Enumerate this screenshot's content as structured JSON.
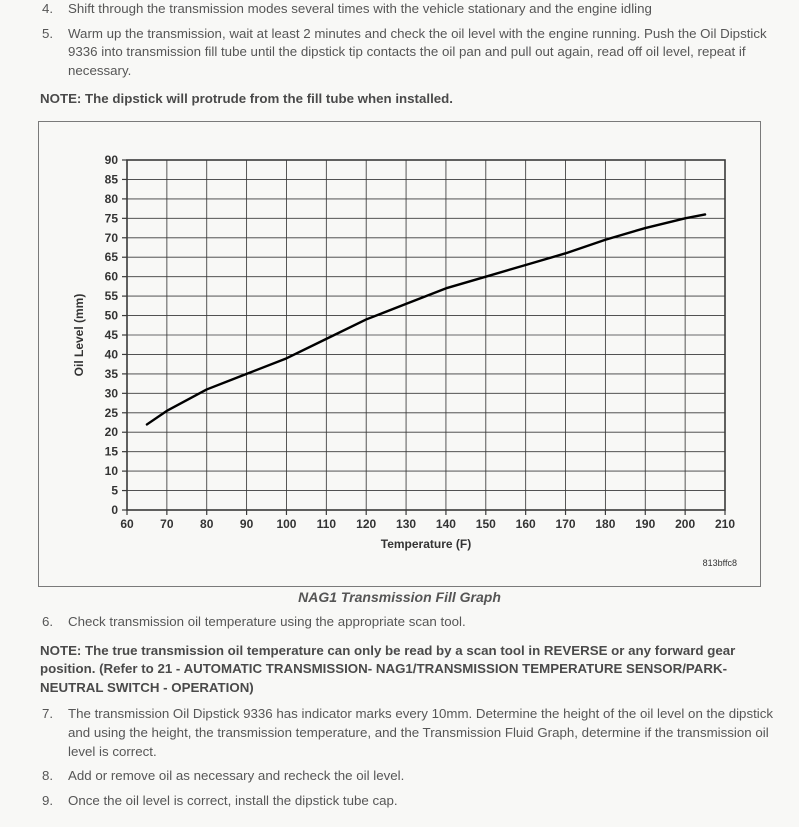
{
  "steps_top": [
    {
      "n": "4.",
      "text": "Shift through the transmission modes several times with the vehicle stationary and the engine idling"
    },
    {
      "n": "5.",
      "text": "Warm up the transmission, wait at least 2 minutes and check the oil level with the engine running. Push the Oil Dipstick 9336 into transmission fill tube until the dipstick tip contacts the oil pan and pull out again, read off oil level, repeat if necessary."
    }
  ],
  "note_1": "NOTE: The dipstick will protrude from the fill tube when installed.",
  "chart": {
    "type": "line",
    "caption": "NAG1 Transmission Fill Graph",
    "figure_id": "813bffc8",
    "x_label": "Temperature (F)",
    "y_label": "Oil Level (mm)",
    "xlim": [
      60,
      210
    ],
    "ylim": [
      0,
      90
    ],
    "xtick_step": 10,
    "ytick_step": 5,
    "grid_color": "#3a3a3a",
    "grid_stroke": 0.85,
    "line_color": "#000000",
    "line_stroke": 2.4,
    "background_color": "#f8f8f6",
    "points": [
      {
        "x": 65,
        "y": 22
      },
      {
        "x": 70,
        "y": 25.5
      },
      {
        "x": 80,
        "y": 31
      },
      {
        "x": 90,
        "y": 35
      },
      {
        "x": 100,
        "y": 39
      },
      {
        "x": 110,
        "y": 44
      },
      {
        "x": 120,
        "y": 49
      },
      {
        "x": 130,
        "y": 53
      },
      {
        "x": 140,
        "y": 57
      },
      {
        "x": 150,
        "y": 60
      },
      {
        "x": 160,
        "y": 63
      },
      {
        "x": 170,
        "y": 66
      },
      {
        "x": 180,
        "y": 69.5
      },
      {
        "x": 190,
        "y": 72.5
      },
      {
        "x": 200,
        "y": 75
      },
      {
        "x": 205,
        "y": 76
      }
    ]
  },
  "steps_mid": [
    {
      "n": "6.",
      "text": "Check transmission oil temperature using the appropriate scan tool."
    }
  ],
  "note_2": "NOTE: The true transmission oil temperature can only be read by a scan tool in REVERSE or any forward gear position. (Refer to 21 - AUTOMATIC TRANSMISSION- NAG1/TRANSMISSION TEMPERATURE SENSOR/PARK-NEUTRAL SWITCH - OPERATION)",
  "steps_bottom": [
    {
      "n": "7.",
      "text": "The transmission Oil Dipstick 9336 has indicator marks every 10mm. Determine the height of the oil level on the dipstick and using the height, the transmission temperature, and the Transmission Fluid Graph, determine if the transmission oil level is correct."
    },
    {
      "n": "8.",
      "text": "Add or remove oil as necessary and recheck the oil level."
    },
    {
      "n": "9.",
      "text": "Once the oil level is correct, install the dipstick tube cap."
    }
  ]
}
